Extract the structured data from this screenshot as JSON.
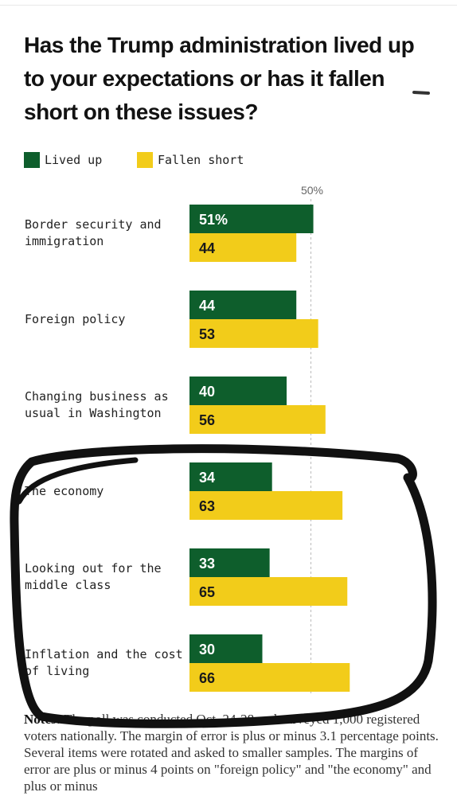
{
  "title": "Has the Trump administration lived up to your expectations or has it fallen short on these issues?",
  "legend": [
    {
      "label": "Lived up",
      "color": "#0e5e2c"
    },
    {
      "label": "Fallen short",
      "color": "#f2cc1a"
    }
  ],
  "reference_line": {
    "value": 50,
    "label": "50%"
  },
  "chart_data": {
    "type": "bar",
    "orientation": "horizontal",
    "categories": [
      "Border security and immigration",
      "Foreign policy",
      "Changing business as usual in Washington",
      "The economy",
      "Looking out for the middle class",
      "Inflation and the cost of living"
    ],
    "series": [
      {
        "name": "Lived up",
        "color": "#0e5e2c",
        "values": [
          51,
          44,
          40,
          34,
          33,
          30
        ],
        "labels": [
          "51%",
          "44",
          "40",
          "34",
          "33",
          "30"
        ]
      },
      {
        "name": "Fallen short",
        "color": "#f2cc1a",
        "values": [
          44,
          53,
          56,
          63,
          65,
          66
        ],
        "labels": [
          "44",
          "53",
          "56",
          "63",
          "65",
          "66"
        ]
      }
    ],
    "xlim": [
      0,
      100
    ]
  },
  "notes": {
    "lead": "Notes:",
    "text": "The poll was conducted Oct. 24-28 and surveyed 1,000 registered voters nationally. The margin of error is plus or minus 3.1 percentage points. Several items were rotated and asked to smaller samples. The margins of error are plus or minus 4 points on \"foreign policy\" and \"the economy\" and plus or minus"
  },
  "annotation_color": "#111111"
}
